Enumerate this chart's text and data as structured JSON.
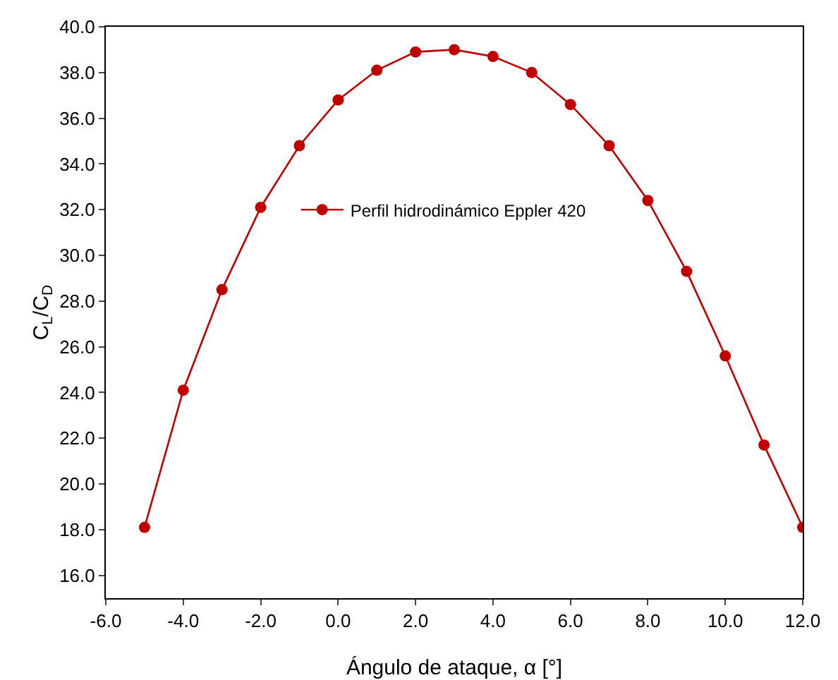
{
  "chart_data": {
    "type": "line",
    "xlabel": "Ángulo de ataque, α [°]",
    "ylabel": "C$_{L}$/C$_{D}$",
    "x": [
      -5,
      -4,
      -3,
      -2,
      -1,
      0,
      1,
      2,
      3,
      4,
      5,
      6,
      7,
      8,
      9,
      10,
      11,
      12
    ],
    "series": [
      {
        "name": "Perfil hidrodinámico Eppler 420",
        "color": "#c00000",
        "values": [
          18.1,
          24.1,
          28.5,
          32.1,
          34.8,
          36.8,
          38.1,
          38.9,
          39.0,
          38.7,
          38.0,
          36.6,
          34.8,
          32.4,
          29.3,
          25.6,
          21.7,
          18.1
        ]
      }
    ],
    "xlim": [
      -6,
      12
    ],
    "xticks": [
      {
        "value": -6,
        "label": "-6.0"
      },
      {
        "value": -4,
        "label": "-4.0"
      },
      {
        "value": -2,
        "label": "-2.0"
      },
      {
        "value": 0,
        "label": "0.0"
      },
      {
        "value": 2,
        "label": "2.0"
      },
      {
        "value": 4,
        "label": "4.0"
      },
      {
        "value": 6,
        "label": "6.0"
      },
      {
        "value": 8,
        "label": "8.0"
      },
      {
        "value": 10,
        "label": "10.0"
      },
      {
        "value": 12,
        "label": "12.0"
      }
    ],
    "ylim": [
      15,
      40
    ],
    "yticks": [
      {
        "value": 16,
        "label": "16.0"
      },
      {
        "value": 18,
        "label": "18.0"
      },
      {
        "value": 20,
        "label": "20.0"
      },
      {
        "value": 22,
        "label": "22.0"
      },
      {
        "value": 24,
        "label": "24.0"
      },
      {
        "value": 26,
        "label": "26.0"
      },
      {
        "value": 28,
        "label": "28.0"
      },
      {
        "value": 30,
        "label": "30.0"
      },
      {
        "value": 32,
        "label": "32.0"
      },
      {
        "value": 34,
        "label": "34.0"
      },
      {
        "value": 36,
        "label": "36.0"
      },
      {
        "value": 38,
        "label": "38.0"
      },
      {
        "value": 40,
        "label": "40.0"
      }
    ],
    "grid": false,
    "legend": "top left",
    "marker": "circle",
    "line_style": "solid"
  }
}
